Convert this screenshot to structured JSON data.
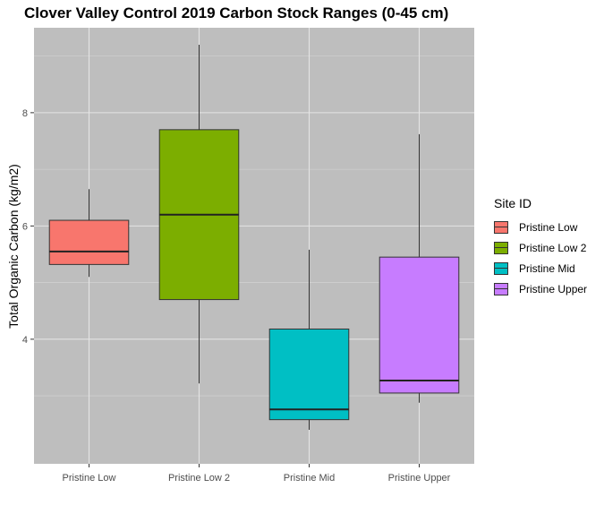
{
  "chart_data": {
    "type": "boxplot",
    "title": "Clover Valley Control 2019 Carbon Stock Ranges (0-45 cm)",
    "xlabel": "",
    "ylabel": "Total Organic Carbon (kg/m2)",
    "ylim": [
      1.8,
      9.5
    ],
    "yticks": [
      4,
      6,
      8
    ],
    "grid": true,
    "legend": {
      "title": "Site ID",
      "position": "right"
    },
    "categories": [
      "Pristine Low",
      "Pristine Low 2",
      "Pristine Mid",
      "Pristine Upper"
    ],
    "series": [
      {
        "name": "Pristine Low",
        "color": "#F8766D",
        "min": 5.1,
        "q1": 5.32,
        "median": 5.55,
        "q3": 6.1,
        "max": 6.65
      },
      {
        "name": "Pristine Low 2",
        "color": "#7CAE00",
        "min": 3.22,
        "q1": 4.7,
        "median": 6.2,
        "q3": 7.7,
        "max": 9.2
      },
      {
        "name": "Pristine Mid",
        "color": "#00BFC4",
        "min": 2.4,
        "q1": 2.58,
        "median": 2.76,
        "q3": 4.18,
        "max": 5.58
      },
      {
        "name": "Pristine Upper",
        "color": "#C77CFF",
        "min": 2.88,
        "q1": 3.05,
        "median": 3.27,
        "q3": 5.45,
        "max": 7.62
      }
    ]
  }
}
